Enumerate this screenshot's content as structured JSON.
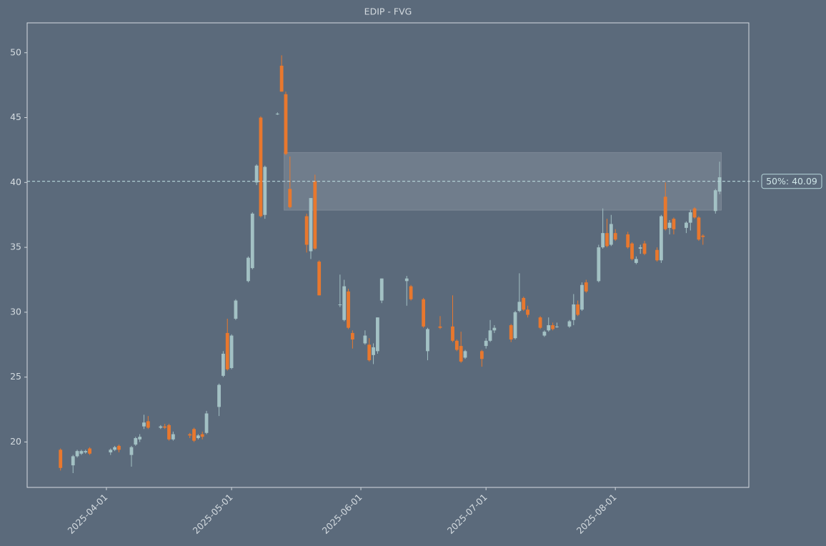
{
  "chart_data": {
    "type": "candlestick",
    "title": "EDIP - FVG",
    "up_color": "#a3c1c4",
    "down_color": "#e8782e",
    "xlim": [
      "2025-03-13",
      "2025-09-02"
    ],
    "xticks": [
      "2025-04-01",
      "2025-05-01",
      "2025-06-01",
      "2025-07-01",
      "2025-08-01"
    ],
    "ylim": [
      16.5,
      52.3
    ],
    "yticks": [
      20,
      25,
      30,
      35,
      40,
      45,
      50
    ],
    "zone": {
      "start": "2025-05-14",
      "end": "2025-08-26",
      "low": 37.86,
      "high": 42.31
    },
    "midline": {
      "value": 40.09,
      "label": "50%: 40.09"
    },
    "candles": [
      [
        "2025-03-21",
        19.4,
        19.5,
        17.8,
        18.0
      ],
      [
        "2025-03-24",
        18.2,
        19.0,
        17.6,
        18.9
      ],
      [
        "2025-03-25",
        18.9,
        19.4,
        18.8,
        19.3
      ],
      [
        "2025-03-26",
        19.1,
        19.4,
        19.0,
        19.3
      ],
      [
        "2025-03-27",
        19.2,
        19.4,
        19.1,
        19.3
      ],
      [
        "2025-03-28",
        19.5,
        19.6,
        19.0,
        19.1
      ],
      [
        "2025-04-02",
        19.2,
        19.5,
        19.0,
        19.4
      ],
      [
        "2025-04-03",
        19.4,
        19.7,
        19.3,
        19.6
      ],
      [
        "2025-04-04",
        19.7,
        19.8,
        19.2,
        19.4
      ],
      [
        "2025-04-07",
        19.0,
        19.7,
        18.1,
        19.6
      ],
      [
        "2025-04-08",
        19.8,
        20.4,
        19.7,
        20.3
      ],
      [
        "2025-04-09",
        20.2,
        20.6,
        20.0,
        20.4
      ],
      [
        "2025-04-10",
        21.2,
        22.1,
        21.0,
        21.5
      ],
      [
        "2025-04-11",
        21.6,
        22.0,
        21.0,
        21.1
      ],
      [
        "2025-04-14",
        21.1,
        21.3,
        21.0,
        21.2
      ],
      [
        "2025-04-15",
        21.2,
        21.4,
        21.0,
        21.1
      ],
      [
        "2025-04-16",
        21.3,
        21.4,
        20.1,
        20.2
      ],
      [
        "2025-04-17",
        20.2,
        20.8,
        20.1,
        20.6
      ],
      [
        "2025-04-21",
        20.6,
        20.7,
        20.3,
        20.5
      ],
      [
        "2025-04-22",
        21.0,
        21.1,
        20.0,
        20.1
      ],
      [
        "2025-04-23",
        20.3,
        20.6,
        20.2,
        20.5
      ],
      [
        "2025-04-24",
        20.6,
        20.8,
        20.2,
        20.4
      ],
      [
        "2025-04-25",
        20.7,
        22.4,
        20.6,
        22.2
      ],
      [
        "2025-04-28",
        22.7,
        24.5,
        22.0,
        24.4
      ],
      [
        "2025-04-29",
        25.1,
        27.0,
        25.0,
        26.8
      ],
      [
        "2025-04-30",
        28.4,
        29.5,
        25.5,
        25.6
      ],
      [
        "2025-05-01",
        25.7,
        28.3,
        25.6,
        28.2
      ],
      [
        "2025-05-02",
        29.5,
        31.0,
        29.4,
        30.9
      ],
      [
        "2025-05-05",
        32.4,
        34.3,
        32.3,
        34.2
      ],
      [
        "2025-05-06",
        33.4,
        37.7,
        33.3,
        37.6
      ],
      [
        "2025-05-07",
        40.0,
        41.4,
        39.8,
        41.3
      ],
      [
        "2025-05-08",
        45.0,
        45.1,
        37.3,
        37.4
      ],
      [
        "2025-05-09",
        37.5,
        41.3,
        37.2,
        41.2
      ],
      [
        "2025-05-12",
        45.3,
        45.4,
        45.2,
        45.3
      ],
      [
        "2025-05-13",
        49.0,
        49.8,
        47.0,
        47.0
      ],
      [
        "2025-05-14",
        46.8,
        47.0,
        42.1,
        42.2
      ],
      [
        "2025-05-15",
        39.5,
        42.0,
        38.0,
        38.1
      ],
      [
        "2025-05-19",
        37.4,
        37.6,
        34.6,
        35.2
      ],
      [
        "2025-05-20",
        34.7,
        38.8,
        34.1,
        38.8
      ],
      [
        "2025-05-21",
        40.1,
        40.6,
        34.8,
        34.9
      ],
      [
        "2025-05-22",
        33.9,
        34.0,
        31.3,
        31.3
      ],
      [
        "2025-05-27",
        30.6,
        32.9,
        30.4,
        30.6
      ],
      [
        "2025-05-28",
        29.4,
        32.5,
        29.3,
        32.0
      ],
      [
        "2025-05-29",
        31.6,
        31.8,
        28.7,
        28.8
      ],
      [
        "2025-05-30",
        28.4,
        28.6,
        27.2,
        27.9
      ],
      [
        "2025-06-02",
        27.6,
        28.6,
        27.5,
        28.2
      ],
      [
        "2025-06-03",
        27.5,
        28.0,
        26.2,
        26.3
      ],
      [
        "2025-06-04",
        26.7,
        27.6,
        26.0,
        27.3
      ],
      [
        "2025-06-05",
        27.0,
        29.6,
        26.8,
        29.6
      ],
      [
        "2025-06-06",
        30.9,
        32.6,
        30.7,
        32.6
      ],
      [
        "2025-06-12",
        32.4,
        32.8,
        30.5,
        32.6
      ],
      [
        "2025-06-13",
        32.0,
        32.1,
        30.9,
        31.0
      ],
      [
        "2025-06-16",
        31.0,
        31.1,
        28.8,
        28.9
      ],
      [
        "2025-06-17",
        27.0,
        28.8,
        26.3,
        28.7
      ],
      [
        "2025-06-20",
        28.9,
        29.7,
        28.7,
        28.8
      ],
      [
        "2025-06-23",
        28.9,
        31.3,
        27.7,
        27.8
      ],
      [
        "2025-06-24",
        27.8,
        27.9,
        27.0,
        27.1
      ],
      [
        "2025-06-25",
        27.4,
        28.5,
        26.1,
        26.2
      ],
      [
        "2025-06-26",
        26.5,
        27.1,
        26.4,
        27.0
      ],
      [
        "2025-06-30",
        27.0,
        27.1,
        25.8,
        26.4
      ],
      [
        "2025-07-01",
        27.4,
        28.0,
        27.2,
        27.8
      ],
      [
        "2025-07-02",
        27.8,
        29.4,
        27.7,
        28.6
      ],
      [
        "2025-07-03",
        28.6,
        29.0,
        28.4,
        28.8
      ],
      [
        "2025-07-07",
        29.0,
        29.1,
        27.7,
        27.9
      ],
      [
        "2025-07-08",
        28.0,
        30.1,
        27.9,
        30.0
      ],
      [
        "2025-07-09",
        30.1,
        33.0,
        30.0,
        30.8
      ],
      [
        "2025-07-10",
        31.1,
        31.2,
        30.1,
        30.2
      ],
      [
        "2025-07-11",
        30.2,
        30.5,
        29.6,
        29.8
      ],
      [
        "2025-07-14",
        29.6,
        29.7,
        28.7,
        28.8
      ],
      [
        "2025-07-15",
        28.2,
        28.6,
        28.1,
        28.5
      ],
      [
        "2025-07-16",
        28.6,
        29.6,
        28.5,
        29.0
      ],
      [
        "2025-07-17",
        29.0,
        29.2,
        28.6,
        28.7
      ],
      [
        "2025-07-18",
        28.9,
        29.2,
        28.8,
        28.9
      ],
      [
        "2025-07-21",
        28.9,
        29.4,
        28.8,
        29.3
      ],
      [
        "2025-07-22",
        29.4,
        31.4,
        29.0,
        30.6
      ],
      [
        "2025-07-23",
        30.6,
        30.9,
        29.7,
        29.8
      ],
      [
        "2025-07-24",
        30.2,
        32.3,
        30.1,
        32.1
      ],
      [
        "2025-07-25",
        32.3,
        32.5,
        31.5,
        31.6
      ],
      [
        "2025-07-28",
        32.4,
        35.2,
        32.3,
        35.0
      ],
      [
        "2025-07-29",
        35.0,
        38.0,
        34.9,
        36.1
      ],
      [
        "2025-07-30",
        36.1,
        37.2,
        35.0,
        35.1
      ],
      [
        "2025-07-31",
        35.2,
        37.5,
        35.1,
        36.8
      ],
      [
        "2025-08-01",
        36.1,
        36.4,
        35.5,
        35.6
      ],
      [
        "2025-08-04",
        36.0,
        36.2,
        34.9,
        35.0
      ],
      [
        "2025-08-05",
        35.3,
        35.4,
        34.0,
        34.1
      ],
      [
        "2025-08-06",
        33.8,
        34.3,
        33.7,
        34.1
      ],
      [
        "2025-08-07",
        34.9,
        35.2,
        34.5,
        35.0
      ],
      [
        "2025-08-08",
        35.3,
        35.5,
        34.4,
        34.5
      ],
      [
        "2025-08-11",
        34.8,
        35.0,
        33.9,
        34.0
      ],
      [
        "2025-08-12",
        34.0,
        37.5,
        33.8,
        37.4
      ],
      [
        "2025-08-13",
        38.9,
        40.0,
        36.3,
        36.4
      ],
      [
        "2025-08-14",
        36.5,
        37.1,
        36.0,
        36.9
      ],
      [
        "2025-08-15",
        37.2,
        37.3,
        36.0,
        36.4
      ],
      [
        "2025-08-18",
        36.5,
        37.0,
        36.1,
        36.9
      ],
      [
        "2025-08-19",
        36.9,
        37.9,
        36.3,
        37.7
      ],
      [
        "2025-08-20",
        38.0,
        38.1,
        37.2,
        37.3
      ],
      [
        "2025-08-21",
        37.3,
        37.4,
        35.5,
        35.6
      ],
      [
        "2025-08-22",
        35.9,
        36.0,
        35.2,
        35.8
      ],
      [
        "2025-08-25",
        37.8,
        39.5,
        37.6,
        39.4
      ],
      [
        "2025-08-26",
        39.3,
        41.6,
        39.1,
        40.4
      ]
    ]
  }
}
